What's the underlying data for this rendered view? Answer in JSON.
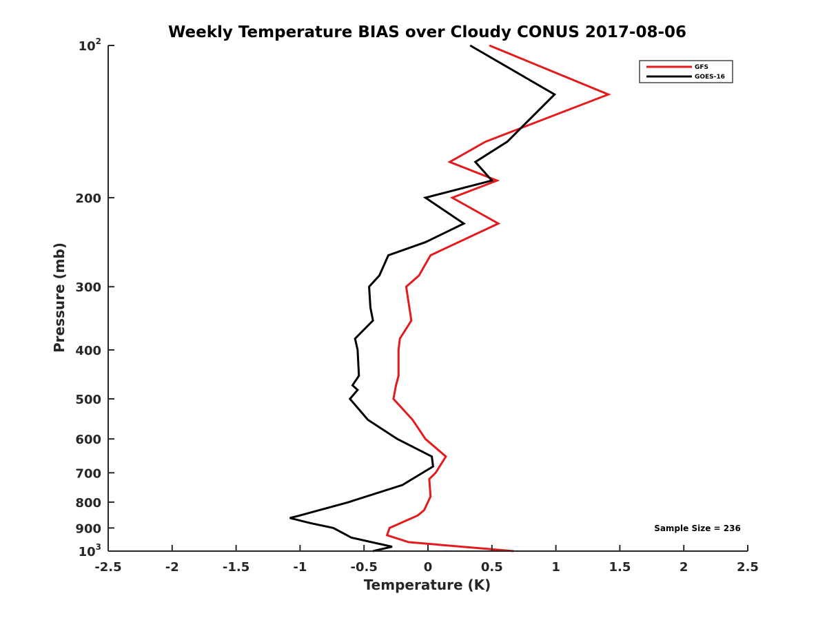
{
  "chart_data": {
    "type": "line",
    "title": "Weekly Temperature BIAS over Cloudy CONUS 2017-08-06",
    "xlabel": "Temperature (K)",
    "ylabel": "Pressure (mb)",
    "xlim": [
      -2.5,
      2.5
    ],
    "ylim": [
      1000,
      100
    ],
    "y_scale": "log",
    "y_reversed": true,
    "x_ticks": [
      "-2.5",
      "-2",
      "-1.5",
      "-1",
      "-0.5",
      "0",
      "0.5",
      "1",
      "1.5",
      "2",
      "2.5"
    ],
    "y_ticks": [
      {
        "value": 100,
        "base": "10",
        "exp": "2",
        "label": ""
      },
      {
        "value": 200,
        "label": "200"
      },
      {
        "value": 300,
        "label": "300"
      },
      {
        "value": 400,
        "label": "400"
      },
      {
        "value": 500,
        "label": "500"
      },
      {
        "value": 600,
        "label": "600"
      },
      {
        "value": 700,
        "label": "700"
      },
      {
        "value": 800,
        "label": "800"
      },
      {
        "value": 900,
        "label": "900"
      },
      {
        "value": 1000,
        "base": "10",
        "exp": "3",
        "label": ""
      }
    ],
    "grid": false,
    "legend_position": "top-right",
    "series": [
      {
        "name": "GFS",
        "color": "#e41a1c",
        "points": [
          [
            0.48,
            100
          ],
          [
            1.41,
            125
          ],
          [
            0.45,
            155
          ],
          [
            0.17,
            170
          ],
          [
            0.54,
            185
          ],
          [
            0.19,
            200
          ],
          [
            0.55,
            225
          ],
          [
            0.02,
            260
          ],
          [
            -0.07,
            285
          ],
          [
            -0.17,
            300
          ],
          [
            -0.13,
            350
          ],
          [
            -0.22,
            380
          ],
          [
            -0.23,
            400
          ],
          [
            -0.23,
            450
          ],
          [
            -0.25,
            470
          ],
          [
            -0.27,
            500
          ],
          [
            -0.12,
            550
          ],
          [
            -0.02,
            600
          ],
          [
            0.14,
            650
          ],
          [
            0.06,
            700
          ],
          [
            0.01,
            720
          ],
          [
            0.02,
            780
          ],
          [
            -0.03,
            830
          ],
          [
            -0.08,
            850
          ],
          [
            -0.3,
            900
          ],
          [
            -0.32,
            930
          ],
          [
            -0.15,
            960
          ],
          [
            0.67,
            1000
          ]
        ]
      },
      {
        "name": "GOES-16",
        "color": "#000000",
        "points": [
          [
            0.33,
            100
          ],
          [
            0.99,
            125
          ],
          [
            0.62,
            155
          ],
          [
            0.37,
            170
          ],
          [
            0.5,
            185
          ],
          [
            -0.02,
            200
          ],
          [
            0.28,
            225
          ],
          [
            -0.02,
            245
          ],
          [
            -0.31,
            260
          ],
          [
            -0.38,
            285
          ],
          [
            -0.46,
            300
          ],
          [
            -0.45,
            330
          ],
          [
            -0.43,
            350
          ],
          [
            -0.57,
            380
          ],
          [
            -0.55,
            400
          ],
          [
            -0.54,
            450
          ],
          [
            -0.59,
            470
          ],
          [
            -0.55,
            480
          ],
          [
            -0.61,
            500
          ],
          [
            -0.47,
            550
          ],
          [
            -0.24,
            600
          ],
          [
            0.03,
            650
          ],
          [
            0.04,
            680
          ],
          [
            -0.2,
            740
          ],
          [
            -0.62,
            800
          ],
          [
            -1.0,
            850
          ],
          [
            -1.08,
            860
          ],
          [
            -0.92,
            880
          ],
          [
            -0.74,
            900
          ],
          [
            -0.6,
            940
          ],
          [
            -0.28,
            980
          ],
          [
            -0.43,
            1000
          ]
        ]
      }
    ],
    "annotation": "Sample Size = 236"
  }
}
